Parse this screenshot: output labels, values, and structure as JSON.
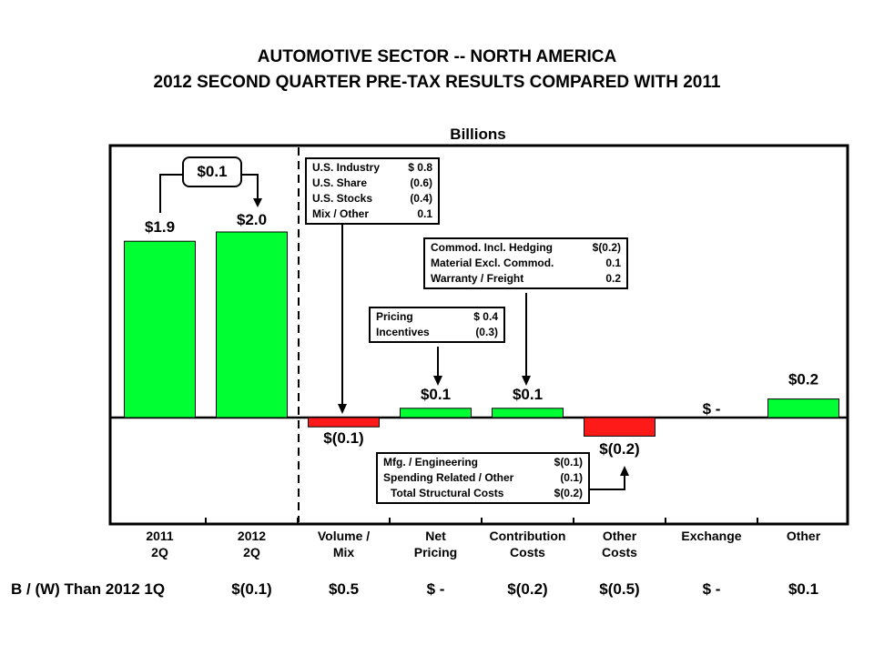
{
  "title_line1": "AUTOMOTIVE SECTOR -- NORTH AMERICA",
  "title_line2": "2012 SECOND QUARTER PRE-TAX RESULTS COMPARED WITH 2011",
  "units_label": "Billions",
  "chart_data": {
    "type": "bar",
    "subtype": "waterfall",
    "title": "AUTOMOTIVE SECTOR -- NORTH AMERICA 2012 SECOND QUARTER PRE-TAX RESULTS COMPARED WITH 2011",
    "ylabel": "Billions",
    "ylim": [
      -0.5,
      2.4
    ],
    "categories": [
      {
        "line1": "2011",
        "line2": "2Q"
      },
      {
        "line1": "2012",
        "line2": "2Q"
      },
      {
        "line1": "Volume /",
        "line2": "Mix"
      },
      {
        "line1": "Net",
        "line2": "Pricing"
      },
      {
        "line1": "Contribution",
        "line2": "Costs"
      },
      {
        "line1": "Other",
        "line2": "Costs"
      },
      {
        "line1": "Exchange",
        "line2": ""
      },
      {
        "line1": "Other",
        "line2": ""
      }
    ],
    "values": [
      1.9,
      2.0,
      -0.1,
      0.1,
      0.1,
      -0.2,
      0.0,
      0.2
    ],
    "value_labels": [
      "$1.9",
      "$2.0",
      "$(0.1)",
      "$0.1",
      "$0.1",
      "$(0.2)",
      "$ -",
      "$0.2"
    ],
    "colors": {
      "positive": "#00ff33",
      "negative": "#ff1a1a",
      "outline": "#000000"
    },
    "change_label": "$0.1"
  },
  "info_boxes": {
    "volume": [
      {
        "label": "U.S. Industry",
        "value": "$ 0.8"
      },
      {
        "label": "U.S. Share",
        "value": "(0.6)"
      },
      {
        "label": "U.S. Stocks",
        "value": "(0.4)"
      },
      {
        "label": "Mix / Other",
        "value": "0.1"
      }
    ],
    "contribution": [
      {
        "label": "Commod. Incl. Hedging",
        "value": "$(0.2)"
      },
      {
        "label": "Material Excl. Commod.",
        "value": "0.1"
      },
      {
        "label": "Warranty / Freight",
        "value": "0.2"
      }
    ],
    "pricing": [
      {
        "label": "Pricing",
        "value": "$ 0.4"
      },
      {
        "label": "Incentives",
        "value": "(0.3)"
      }
    ],
    "other_costs": [
      {
        "label": "Mfg. / Engineering",
        "value": "$(0.1)"
      },
      {
        "label": "Spending Related / Other",
        "value": "(0.1)"
      },
      {
        "label": "Total Structural Costs",
        "value": "$(0.2)"
      }
    ]
  },
  "comparison": {
    "label": "B / (W) Than 2012 1Q",
    "values": [
      "$(0.1)",
      "$0.5",
      "$ -",
      "$(0.2)",
      "$(0.5)",
      "$ -",
      "$0.1"
    ]
  }
}
